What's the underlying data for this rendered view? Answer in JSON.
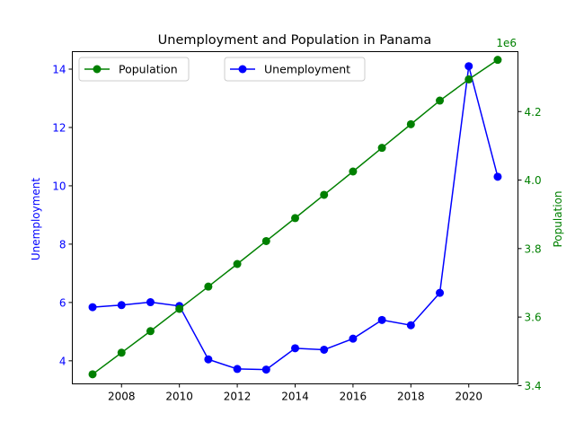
{
  "chart_data": {
    "type": "line",
    "title": "Unemployment and Population in Panama",
    "xlabel": "",
    "x": [
      2007,
      2008,
      2009,
      2010,
      2011,
      2012,
      2013,
      2014,
      2015,
      2016,
      2017,
      2018,
      2019,
      2020,
      2021
    ],
    "xlim": [
      2006.3,
      2021.7
    ],
    "xticks": [
      2008,
      2010,
      2012,
      2014,
      2016,
      2018,
      2020
    ],
    "left_axis": {
      "label": "Unemployment",
      "color": "#0000ff",
      "ylim": [
        3.21,
        14.6
      ],
      "ticks": [
        4,
        6,
        8,
        10,
        12,
        14
      ]
    },
    "right_axis": {
      "label": "Population",
      "offset_text": "1e6",
      "color": "#008000",
      "ylim": [
        3.405,
        4.375
      ],
      "ticks": [
        3.4,
        3.6,
        3.8,
        4.0,
        4.2
      ]
    },
    "series": [
      {
        "name": "Unemployment",
        "axis": "left",
        "color": "#0000ff",
        "values": [
          5.84,
          5.91,
          6.01,
          5.88,
          4.05,
          3.72,
          3.7,
          4.43,
          4.38,
          4.76,
          5.4,
          5.22,
          6.33,
          14.1,
          10.31
        ]
      },
      {
        "name": "Population",
        "axis": "right",
        "color": "#008000",
        "values": [
          3.433,
          3.496,
          3.559,
          3.624,
          3.689,
          3.755,
          3.822,
          3.889,
          3.957,
          4.025,
          4.094,
          4.163,
          4.232,
          4.294,
          4.351
        ]
      }
    ],
    "legends": [
      {
        "position": "top-left",
        "entries": [
          "Population"
        ]
      },
      {
        "position": "top-center",
        "entries": [
          "Unemployment"
        ]
      }
    ],
    "grid": false
  }
}
